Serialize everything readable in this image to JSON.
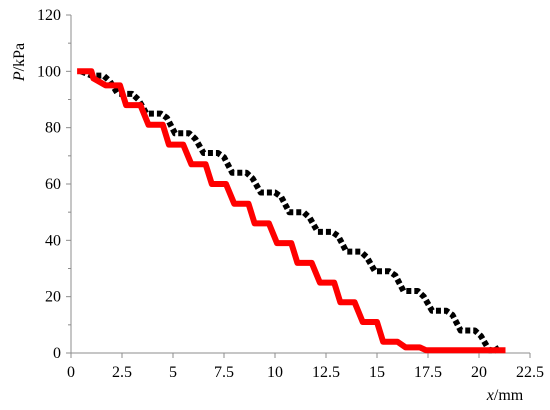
{
  "chart_data": {
    "type": "line",
    "xlabel": {
      "var": "x",
      "unit": "/mm"
    },
    "ylabel": {
      "var": "P",
      "unit": "/kPa"
    },
    "xlim": [
      0,
      22.5
    ],
    "ylim": [
      0,
      120
    ],
    "x_ticks": [
      0,
      2.5,
      5,
      7.5,
      10,
      12.5,
      15,
      17.5,
      20,
      22.5
    ],
    "x_tick_labels": [
      "0",
      "2.5",
      "5",
      "7.5",
      "10",
      "12.5",
      "15",
      "17.5",
      "20",
      "22.5"
    ],
    "y_ticks": [
      0,
      20,
      40,
      60,
      80,
      100,
      120
    ],
    "y_tick_labels": [
      "0",
      "20",
      "40",
      "60",
      "80",
      "100",
      "120"
    ],
    "grid": false,
    "series": [
      {
        "color": "#000000",
        "style": "dashed",
        "x": [
          0.5,
          1.0,
          1.2,
          1.6,
          1.9,
          2.3,
          2.6,
          3.0,
          3.3,
          3.7,
          4.0,
          4.4,
          4.7,
          5.1,
          5.4,
          5.8,
          6.1,
          6.5,
          6.8,
          7.2,
          7.5,
          7.9,
          8.2,
          8.6,
          8.9,
          9.3,
          9.6,
          10.0,
          10.3,
          10.7,
          11.0,
          11.4,
          11.7,
          12.1,
          12.4,
          12.8,
          13.1,
          13.5,
          13.8,
          14.2,
          14.5,
          14.9,
          15.2,
          15.6,
          15.9,
          16.3,
          16.6,
          17.0,
          17.3,
          17.7,
          18.0,
          18.4,
          18.7,
          19.1,
          19.4,
          19.8,
          20.1,
          20.5,
          20.8,
          21.0
        ],
        "y": [
          100,
          98.5,
          98.5,
          98.5,
          96.5,
          92,
          92,
          92,
          90,
          85,
          85,
          85,
          83.5,
          78,
          78,
          78,
          76,
          71,
          71,
          71,
          69.5,
          64,
          64,
          64,
          62,
          57,
          57,
          57,
          55.5,
          50,
          50,
          50,
          48,
          43,
          43,
          43,
          41.5,
          36,
          36,
          36,
          34,
          29,
          29,
          29,
          27.5,
          22,
          22,
          22,
          20,
          15,
          15,
          15,
          13.5,
          8,
          8,
          8,
          6,
          1,
          1,
          2
        ]
      },
      {
        "color": "#ff0000",
        "style": "solid",
        "x": [
          0.3,
          1.0,
          1.1,
          1.7,
          2.0,
          2.4,
          2.7,
          3.1,
          3.4,
          3.8,
          4.1,
          4.5,
          4.8,
          5.2,
          5.5,
          5.9,
          6.2,
          6.6,
          6.9,
          7.3,
          7.6,
          8.0,
          8.3,
          8.7,
          9.0,
          9.4,
          9.7,
          10.1,
          10.4,
          10.8,
          11.1,
          11.5,
          11.8,
          12.2,
          12.5,
          12.9,
          13.2,
          13.6,
          13.9,
          14.3,
          14.6,
          15.0,
          15.3,
          15.7,
          16.0,
          16.4,
          16.7,
          17.1,
          17.4,
          17.8,
          18.1,
          18.5,
          18.8,
          19.2,
          19.5,
          19.9,
          20.2,
          20.6,
          20.9,
          21.3
        ],
        "y": [
          100,
          100,
          97.5,
          95,
          95,
          95,
          88,
          88,
          88,
          81,
          81,
          81,
          74,
          74,
          74,
          67,
          67,
          67,
          60,
          60,
          60,
          53,
          53,
          53,
          46,
          46,
          46,
          39,
          39,
          39,
          32,
          32,
          32,
          25,
          25,
          25,
          18,
          18,
          18,
          11,
          11,
          11,
          4,
          4,
          4,
          2,
          2,
          2,
          1,
          1,
          1,
          1,
          1,
          1,
          1,
          1,
          1,
          1,
          1,
          1
        ]
      }
    ]
  }
}
